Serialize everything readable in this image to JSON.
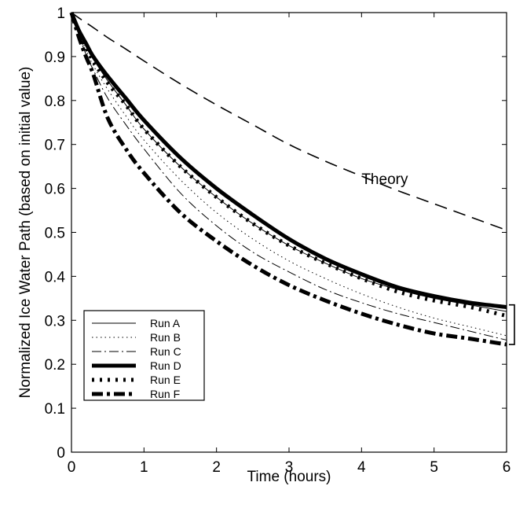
{
  "chart_data": {
    "type": "line",
    "xlabel": "Time (hours)",
    "ylabel": "Normalized Ice Water Path (based on initial value)",
    "xlim": [
      0,
      6
    ],
    "ylim": [
      0,
      1
    ],
    "xticks": [
      0,
      1,
      2,
      3,
      4,
      5,
      6
    ],
    "yticks": [
      0,
      0.1,
      0.2,
      0.3,
      0.4,
      0.5,
      0.6,
      0.7,
      0.8,
      0.9,
      1
    ],
    "grid": false,
    "legend_position": "bottom-left",
    "x": [
      0,
      0.1,
      0.2,
      0.3,
      0.5,
      0.75,
      1,
      1.5,
      2,
      2.5,
      3,
      3.5,
      4,
      4.5,
      5,
      5.5,
      6
    ],
    "series": [
      {
        "name": "Run A",
        "style": "thin-solid",
        "values": [
          1.0,
          0.96,
          0.925,
          0.895,
          0.845,
          0.79,
          0.735,
          0.65,
          0.58,
          0.52,
          0.47,
          0.43,
          0.395,
          0.37,
          0.35,
          0.335,
          0.32
        ]
      },
      {
        "name": "Run B",
        "style": "thin-dotted",
        "values": [
          1.0,
          0.955,
          0.915,
          0.88,
          0.825,
          0.765,
          0.71,
          0.62,
          0.545,
          0.485,
          0.435,
          0.395,
          0.36,
          0.33,
          0.305,
          0.285,
          0.265
        ]
      },
      {
        "name": "Run C",
        "style": "thin-dashdot",
        "values": [
          1.0,
          0.95,
          0.905,
          0.87,
          0.805,
          0.745,
          0.69,
          0.59,
          0.515,
          0.455,
          0.41,
          0.37,
          0.34,
          0.315,
          0.295,
          0.275,
          0.255
        ]
      },
      {
        "name": "Run D",
        "style": "thick-solid",
        "values": [
          1.0,
          0.96,
          0.93,
          0.9,
          0.855,
          0.805,
          0.755,
          0.67,
          0.6,
          0.54,
          0.485,
          0.44,
          0.405,
          0.375,
          0.355,
          0.34,
          0.33
        ]
      },
      {
        "name": "Run E",
        "style": "thick-dotted",
        "values": [
          1.0,
          0.955,
          0.92,
          0.89,
          0.84,
          0.79,
          0.735,
          0.65,
          0.58,
          0.52,
          0.47,
          0.43,
          0.395,
          0.365,
          0.345,
          0.33,
          0.31
        ]
      },
      {
        "name": "Run F",
        "style": "thick-dashdot",
        "values": [
          1.0,
          0.945,
          0.9,
          0.86,
          0.76,
          0.69,
          0.635,
          0.545,
          0.48,
          0.425,
          0.38,
          0.345,
          0.315,
          0.29,
          0.27,
          0.258,
          0.245
        ]
      },
      {
        "name": "Theory",
        "style": "dashed",
        "values": [
          1.0,
          0.988,
          0.977,
          0.966,
          0.943,
          0.917,
          0.89,
          0.838,
          0.79,
          0.745,
          0.7,
          0.662,
          0.628,
          0.595,
          0.565,
          0.535,
          0.505
        ]
      }
    ],
    "annotations": [
      {
        "text": "Theory",
        "x": 4.0,
        "y": 0.61
      }
    ],
    "bracket": {
      "x": 6,
      "y_low": 0.245,
      "y_high": 0.335
    }
  }
}
